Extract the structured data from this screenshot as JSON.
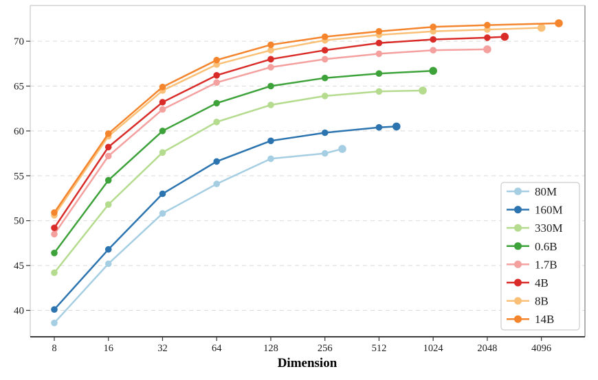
{
  "chart_data": {
    "type": "line",
    "title": "",
    "xlabel": "Dimension",
    "ylabel": "",
    "x_scale": "log2",
    "x_ticks": [
      8,
      16,
      32,
      64,
      128,
      256,
      512,
      1024,
      2048,
      4096
    ],
    "x_tick_labels": [
      "8",
      "16",
      "32",
      "64",
      "128",
      "256",
      "512",
      "1024",
      "2048",
      "4096"
    ],
    "y_ticks": [
      40,
      45,
      50,
      55,
      60,
      65,
      70
    ],
    "y_tick_labels": [
      "40",
      "45",
      "50",
      "55",
      "60",
      "65",
      "70"
    ],
    "ylim": [
      37,
      74
    ],
    "xlim": [
      6,
      7200
    ],
    "grid": "horizontal-dashed",
    "grid_color": "#d9d9d9",
    "legend_position": "lower-right",
    "series": [
      {
        "name": "80M",
        "color": "#a6cee3",
        "x": [
          8,
          16,
          32,
          64,
          128,
          256,
          320
        ],
        "y": [
          38.6,
          45.2,
          50.8,
          54.1,
          56.9,
          57.5,
          58.0
        ]
      },
      {
        "name": "160M",
        "color": "#2b74b0",
        "x": [
          8,
          16,
          32,
          64,
          128,
          256,
          512,
          640
        ],
        "y": [
          40.1,
          46.8,
          53.0,
          56.6,
          58.9,
          59.8,
          60.4,
          60.5
        ]
      },
      {
        "name": "330M",
        "color": "#b4db8e",
        "x": [
          8,
          16,
          32,
          64,
          128,
          256,
          512,
          896
        ],
        "y": [
          44.2,
          51.8,
          57.6,
          61.0,
          62.9,
          63.9,
          64.4,
          64.5
        ]
      },
      {
        "name": "0.6B",
        "color": "#3da23a",
        "x": [
          8,
          16,
          32,
          64,
          128,
          256,
          512,
          1024
        ],
        "y": [
          46.4,
          54.5,
          60.0,
          63.1,
          65.0,
          65.9,
          66.4,
          66.7
        ]
      },
      {
        "name": "1.7B",
        "color": "#f4a09f",
        "x": [
          8,
          16,
          32,
          64,
          128,
          256,
          512,
          1024,
          2048
        ],
        "y": [
          48.5,
          57.2,
          62.4,
          65.4,
          67.1,
          68.0,
          68.6,
          69.0,
          69.1
        ]
      },
      {
        "name": "4B",
        "color": "#d92b28",
        "x": [
          8,
          16,
          32,
          64,
          128,
          256,
          512,
          1024,
          2048,
          2560
        ],
        "y": [
          49.2,
          58.2,
          63.2,
          66.2,
          68.0,
          69.0,
          69.8,
          70.2,
          70.4,
          70.5
        ]
      },
      {
        "name": "8B",
        "color": "#fac077",
        "x": [
          8,
          16,
          32,
          64,
          128,
          256,
          512,
          1024,
          2048,
          4096
        ],
        "y": [
          50.6,
          59.4,
          64.5,
          67.4,
          69.0,
          70.1,
          70.7,
          71.1,
          71.3,
          71.5
        ]
      },
      {
        "name": "14B",
        "color": "#f5852d",
        "x": [
          8,
          16,
          32,
          64,
          128,
          256,
          512,
          1024,
          2048,
          5120
        ],
        "y": [
          50.9,
          59.7,
          64.9,
          67.9,
          69.6,
          70.5,
          71.1,
          71.6,
          71.8,
          72.0
        ]
      }
    ]
  },
  "legend": {
    "items": [
      {
        "label": "80M",
        "color": "#a6cee3"
      },
      {
        "label": "160M",
        "color": "#2b74b0"
      },
      {
        "label": "330M",
        "color": "#b4db8e"
      },
      {
        "label": "0.6B",
        "color": "#3da23a"
      },
      {
        "label": "1.7B",
        "color": "#f4a09f"
      },
      {
        "label": "4B",
        "color": "#d92b28"
      },
      {
        "label": "8B",
        "color": "#fac077"
      },
      {
        "label": "14B",
        "color": "#f5852d"
      }
    ]
  }
}
